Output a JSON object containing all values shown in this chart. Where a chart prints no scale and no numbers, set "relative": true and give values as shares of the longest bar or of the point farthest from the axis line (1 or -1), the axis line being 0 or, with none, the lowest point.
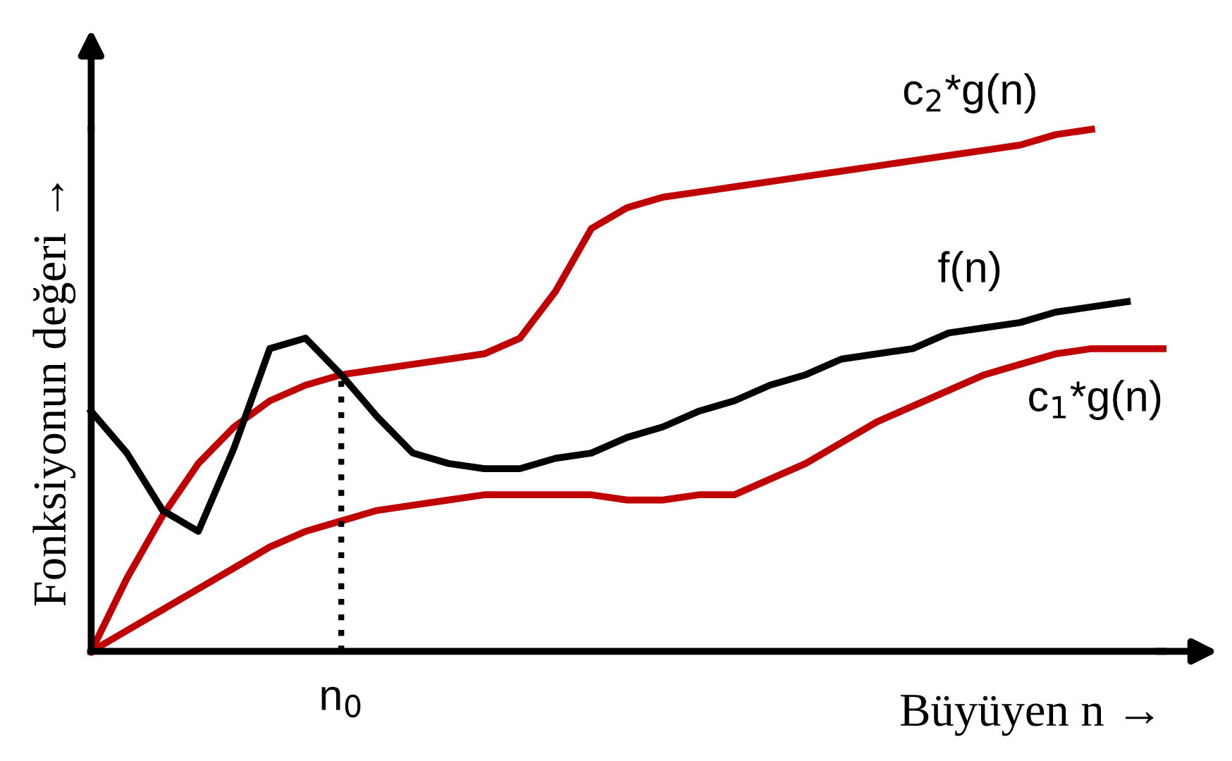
{
  "chart_data": {
    "type": "line",
    "relative": true,
    "xlabel": "Büyüyen n →",
    "ylabel": "Fonksiyonun değeri →",
    "categories": [
      null,
      null,
      null,
      null,
      null,
      null,
      null,
      null,
      null,
      null,
      null,
      null,
      null,
      null,
      null,
      null,
      null,
      null,
      null,
      null,
      null,
      null,
      null,
      null,
      null,
      null,
      null,
      null,
      null,
      null,
      null
    ],
    "series": [
      {
        "name": "c$_{2}$*g(n)",
        "color": "#c00000",
        "values": [
          0,
          0.14,
          0.26,
          0.36,
          0.43,
          0.48,
          0.51,
          0.53,
          0.54,
          0.55,
          0.56,
          0.57,
          0.6,
          0.69,
          0.81,
          0.85,
          0.87,
          0.88,
          0.89,
          0.9,
          0.91,
          0.92,
          0.93,
          0.94,
          0.95,
          0.96,
          0.97,
          0.99,
          1.0,
          null,
          null
        ]
      },
      {
        "name": "f(n)",
        "color": "#000000",
        "values": [
          0.46,
          0.38,
          0.27,
          0.23,
          0.39,
          0.58,
          0.6,
          0.53,
          0.45,
          0.38,
          0.36,
          0.35,
          0.35,
          0.37,
          0.38,
          0.41,
          0.43,
          0.46,
          0.48,
          0.51,
          0.53,
          0.56,
          0.57,
          0.58,
          0.61,
          0.62,
          0.63,
          0.65,
          0.66,
          0.67,
          null
        ]
      },
      {
        "name": "c$_{1}$*g(n)",
        "color": "#c00000",
        "values": [
          0,
          0.04,
          0.08,
          0.12,
          0.16,
          0.2,
          0.23,
          0.25,
          0.27,
          0.28,
          0.29,
          0.3,
          0.3,
          0.3,
          0.3,
          0.29,
          0.29,
          0.3,
          0.3,
          0.33,
          0.36,
          0.4,
          0.44,
          0.47,
          0.5,
          0.53,
          0.55,
          0.57,
          0.58,
          0.58,
          0.58
        ]
      }
    ],
    "annotations": [
      "n$_{0}$"
    ],
    "legend": false,
    "marker": "none",
    "line_style": "solid"
  }
}
